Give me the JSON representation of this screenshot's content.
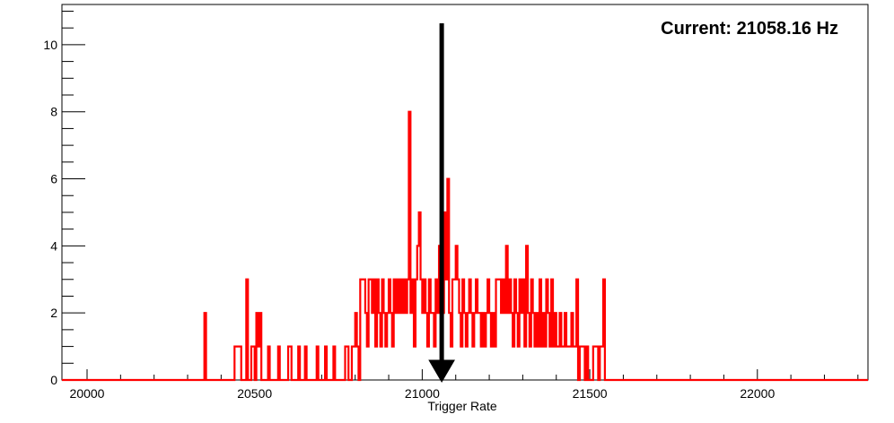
{
  "chart_data": {
    "type": "histogram",
    "xlabel": "Trigger Rate",
    "ylabel": "",
    "title": "",
    "xlim": [
      19925,
      22330
    ],
    "ylim": [
      0,
      11.2
    ],
    "x_ticks": [
      20000,
      20500,
      21000,
      21500,
      22000
    ],
    "y_ticks": [
      0,
      2,
      4,
      6,
      8,
      10
    ],
    "bin_width": 5,
    "grid": false,
    "legend": false,
    "line_color": "#ff0000",
    "current": {
      "label": "Current: 21058.16 Hz",
      "value": 21058.16,
      "arrow_color": "#000000"
    },
    "bins": [
      [
        20350,
        2
      ],
      [
        20440,
        1
      ],
      [
        20445,
        1
      ],
      [
        20450,
        1
      ],
      [
        20455,
        1
      ],
      [
        20475,
        3
      ],
      [
        20490,
        1
      ],
      [
        20495,
        1
      ],
      [
        20505,
        2
      ],
      [
        20510,
        1
      ],
      [
        20515,
        2
      ],
      [
        20540,
        1
      ],
      [
        20570,
        1
      ],
      [
        20600,
        1
      ],
      [
        20605,
        1
      ],
      [
        20630,
        1
      ],
      [
        20650,
        1
      ],
      [
        20685,
        1
      ],
      [
        20710,
        1
      ],
      [
        20735,
        1
      ],
      [
        20770,
        1
      ],
      [
        20775,
        1
      ],
      [
        20790,
        1
      ],
      [
        20795,
        1
      ],
      [
        20800,
        2
      ],
      [
        20805,
        1
      ],
      [
        20815,
        3
      ],
      [
        20820,
        3
      ],
      [
        20825,
        3
      ],
      [
        20830,
        2
      ],
      [
        20835,
        1
      ],
      [
        20840,
        3
      ],
      [
        20845,
        3
      ],
      [
        20850,
        2
      ],
      [
        20855,
        3
      ],
      [
        20860,
        1
      ],
      [
        20865,
        3
      ],
      [
        20870,
        2
      ],
      [
        20875,
        1
      ],
      [
        20880,
        3
      ],
      [
        20885,
        2
      ],
      [
        20890,
        1
      ],
      [
        20895,
        2
      ],
      [
        20900,
        3
      ],
      [
        20905,
        2
      ],
      [
        20910,
        1
      ],
      [
        20915,
        3
      ],
      [
        20920,
        2
      ],
      [
        20925,
        3
      ],
      [
        20930,
        2
      ],
      [
        20935,
        3
      ],
      [
        20940,
        2
      ],
      [
        20945,
        3
      ],
      [
        20950,
        2
      ],
      [
        20955,
        3
      ],
      [
        20960,
        8
      ],
      [
        20965,
        2
      ],
      [
        20970,
        3
      ],
      [
        20975,
        1
      ],
      [
        20980,
        3
      ],
      [
        20985,
        4
      ],
      [
        20990,
        5
      ],
      [
        20995,
        3
      ],
      [
        21000,
        2
      ],
      [
        21005,
        3
      ],
      [
        21010,
        2
      ],
      [
        21015,
        1
      ],
      [
        21020,
        3
      ],
      [
        21025,
        2
      ],
      [
        21030,
        2
      ],
      [
        21035,
        1
      ],
      [
        21040,
        3
      ],
      [
        21045,
        2
      ],
      [
        21050,
        4
      ],
      [
        21055,
        3
      ],
      [
        21060,
        2
      ],
      [
        21065,
        5
      ],
      [
        21070,
        3
      ],
      [
        21075,
        6
      ],
      [
        21080,
        2
      ],
      [
        21085,
        1
      ],
      [
        21090,
        3
      ],
      [
        21095,
        3
      ],
      [
        21100,
        4
      ],
      [
        21105,
        3
      ],
      [
        21110,
        2
      ],
      [
        21115,
        1
      ],
      [
        21120,
        3
      ],
      [
        21125,
        2
      ],
      [
        21130,
        1
      ],
      [
        21135,
        2
      ],
      [
        21140,
        3
      ],
      [
        21145,
        2
      ],
      [
        21150,
        1
      ],
      [
        21155,
        2
      ],
      [
        21160,
        3
      ],
      [
        21165,
        2
      ],
      [
        21170,
        2
      ],
      [
        21175,
        1
      ],
      [
        21180,
        2
      ],
      [
        21185,
        1
      ],
      [
        21190,
        2
      ],
      [
        21195,
        3
      ],
      [
        21200,
        2
      ],
      [
        21205,
        1
      ],
      [
        21210,
        2
      ],
      [
        21215,
        1
      ],
      [
        21220,
        3
      ],
      [
        21225,
        3
      ],
      [
        21230,
        3
      ],
      [
        21235,
        2
      ],
      [
        21240,
        3
      ],
      [
        21245,
        2
      ],
      [
        21250,
        4
      ],
      [
        21255,
        2
      ],
      [
        21260,
        3
      ],
      [
        21265,
        2
      ],
      [
        21270,
        1
      ],
      [
        21275,
        3
      ],
      [
        21280,
        2
      ],
      [
        21285,
        1
      ],
      [
        21290,
        3
      ],
      [
        21295,
        2
      ],
      [
        21300,
        3
      ],
      [
        21305,
        1
      ],
      [
        21310,
        4
      ],
      [
        21315,
        2
      ],
      [
        21320,
        1
      ],
      [
        21325,
        3
      ],
      [
        21330,
        2
      ],
      [
        21335,
        1
      ],
      [
        21340,
        2
      ],
      [
        21345,
        1
      ],
      [
        21350,
        3
      ],
      [
        21355,
        1
      ],
      [
        21360,
        2
      ],
      [
        21365,
        1
      ],
      [
        21370,
        3
      ],
      [
        21375,
        2
      ],
      [
        21380,
        1
      ],
      [
        21385,
        3
      ],
      [
        21390,
        1
      ],
      [
        21395,
        2
      ],
      [
        21400,
        1
      ],
      [
        21405,
        1
      ],
      [
        21410,
        2
      ],
      [
        21415,
        1
      ],
      [
        21420,
        1
      ],
      [
        21425,
        2
      ],
      [
        21430,
        1
      ],
      [
        21435,
        1
      ],
      [
        21440,
        1
      ],
      [
        21445,
        2
      ],
      [
        21450,
        1
      ],
      [
        21455,
        1
      ],
      [
        21460,
        3
      ],
      [
        21470,
        1
      ],
      [
        21475,
        1
      ],
      [
        21480,
        1
      ],
      [
        21490,
        1
      ],
      [
        21510,
        1
      ],
      [
        21515,
        1
      ],
      [
        21520,
        1
      ],
      [
        21530,
        1
      ],
      [
        21535,
        1
      ],
      [
        21540,
        3
      ]
    ]
  }
}
